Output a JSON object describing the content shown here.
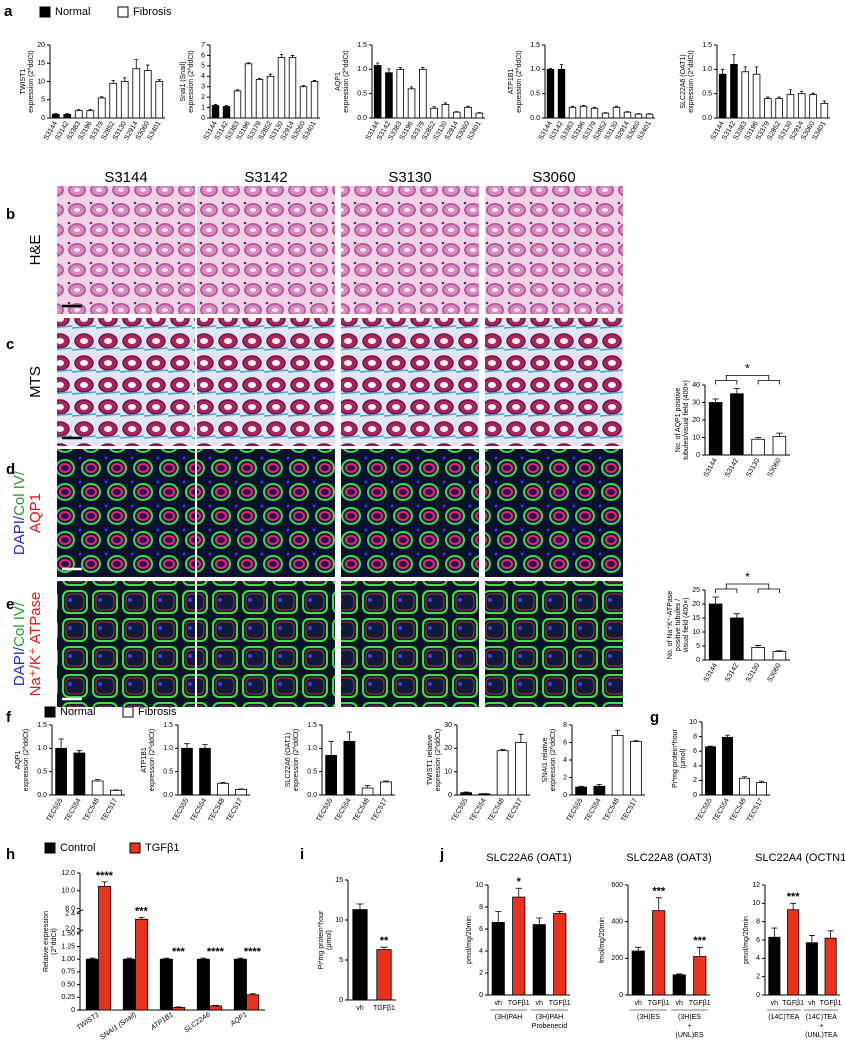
{
  "panel_labels": [
    "a",
    "b",
    "c",
    "d",
    "e",
    "f",
    "g",
    "h",
    "i",
    "j"
  ],
  "legends": [
    {
      "items": [
        {
          "name": "Normal",
          "color": "#000000"
        },
        {
          "name": "Fibrosis",
          "color": "#ffffff"
        }
      ]
    },
    {
      "items": [
        {
          "name": "Normal",
          "color": "#000000"
        },
        {
          "name": "Fibrosis",
          "color": "#ffffff"
        }
      ]
    }
  ],
  "micrographs": {
    "columns": [
      "S3144",
      "S3142",
      "S3130",
      "S3060"
    ],
    "rows": [
      {
        "lines": [
          [
            {
              "text": "H&E",
              "color": "#000000"
            }
          ]
        ]
      },
      {
        "lines": [
          [
            {
              "text": "MTS",
              "color": "#000000"
            }
          ]
        ]
      },
      {
        "lines": [
          [
            {
              "text": "DAPI/",
              "color": "#1f2fd0"
            },
            {
              "text": "Col IV/",
              "color": "#2a9a2a"
            }
          ],
          [
            {
              "text": "AQP1",
              "color": "#e01818"
            }
          ]
        ]
      },
      {
        "lines": [
          [
            {
              "text": "DAPI/",
              "color": "#1f2fd0"
            },
            {
              "text": "Col IV/",
              "color": "#2a9a2a"
            }
          ],
          [
            {
              "text": "Na⁺/K⁺ ATPase",
              "color": "#e01818"
            }
          ]
        ]
      }
    ]
  },
  "chart_data": [
    {
      "type": "bar",
      "ylabel": [
        "TWIST1",
        "expression (2^ddCt)"
      ],
      "categories": [
        "S3144",
        "S3142",
        "S3383",
        "S3196",
        "S3379",
        "S2852",
        "S3130",
        "S2914",
        "S3060",
        "S3401"
      ],
      "values": [
        1,
        1,
        2,
        2,
        5.5,
        9.5,
        10,
        13.5,
        13,
        10
      ],
      "errors": [
        0.2,
        0.2,
        0.3,
        0.3,
        0.3,
        0.8,
        1,
        2.5,
        1.5,
        0.5
      ],
      "colors": [
        "#000000",
        "#000000",
        "#ffffff",
        "#ffffff",
        "#ffffff",
        "#ffffff",
        "#ffffff",
        "#ffffff",
        "#ffffff",
        "#ffffff"
      ],
      "ylim": [
        0,
        20
      ],
      "yticks": [
        0,
        5,
        10,
        15,
        20
      ]
    },
    {
      "type": "bar",
      "ylabel": [
        "Snai1 (Snail)",
        "expression (2^ddCt)"
      ],
      "categories": [
        "S3144",
        "S3142",
        "S3383",
        "S3196",
        "S3379",
        "S2852",
        "S3130",
        "S2914",
        "S3060",
        "S3401"
      ],
      "values": [
        1.2,
        1.1,
        2.6,
        5.2,
        3.7,
        4,
        5.8,
        5.8,
        3,
        3.5
      ],
      "errors": [
        0.1,
        0.1,
        0.1,
        0.1,
        0.1,
        0.2,
        0.3,
        0.2,
        0.1,
        0.1
      ],
      "colors": [
        "#000000",
        "#000000",
        "#ffffff",
        "#ffffff",
        "#ffffff",
        "#ffffff",
        "#ffffff",
        "#ffffff",
        "#ffffff",
        "#ffffff"
      ],
      "ylim": [
        0,
        7
      ],
      "yticks": [
        0,
        1,
        2,
        3,
        4,
        5,
        6,
        7
      ]
    },
    {
      "type": "bar",
      "ylabel": [
        "AQP1",
        "expression (2^ddCt)"
      ],
      "categories": [
        "S3144",
        "S3142",
        "S3383",
        "S3196",
        "S3379",
        "S2852",
        "S3130",
        "S2914",
        "S3060",
        "S3401"
      ],
      "values": [
        1.08,
        0.93,
        1.0,
        0.6,
        1.0,
        0.2,
        0.28,
        0.12,
        0.22,
        0.1
      ],
      "errors": [
        0.05,
        0.08,
        0.04,
        0.04,
        0.04,
        0.03,
        0.03,
        0.01,
        0.02,
        0.01
      ],
      "colors": [
        "#000000",
        "#000000",
        "#ffffff",
        "#ffffff",
        "#ffffff",
        "#ffffff",
        "#ffffff",
        "#ffffff",
        "#ffffff",
        "#ffffff"
      ],
      "ylim": [
        0,
        1.5
      ],
      "yticks": [
        {
          "value": 0,
          "label": "0.0"
        },
        0.5,
        {
          "value": 1,
          "label": "1.0"
        },
        1.5
      ]
    },
    {
      "type": "bar",
      "ylabel": [
        "ATP1B1",
        "expression (2^ddCt)"
      ],
      "categories": [
        "S3144",
        "S3142",
        "S3383",
        "S3196",
        "S3379",
        "S2852",
        "S3130",
        "S2914",
        "S3060",
        "S3401"
      ],
      "values": [
        1.0,
        1.0,
        0.22,
        0.24,
        0.2,
        0.1,
        0.22,
        0.12,
        0.08,
        0.08
      ],
      "errors": [
        0.02,
        0.1,
        0.02,
        0.02,
        0.02,
        0.01,
        0.02,
        0.01,
        0.01,
        0.01
      ],
      "colors": [
        "#000000",
        "#000000",
        "#ffffff",
        "#ffffff",
        "#ffffff",
        "#ffffff",
        "#ffffff",
        "#ffffff",
        "#ffffff",
        "#ffffff"
      ],
      "ylim": [
        0,
        1.5
      ],
      "yticks": [
        {
          "value": 0,
          "label": "0.0"
        },
        0.5,
        {
          "value": 1,
          "label": "1.0"
        },
        1.5
      ]
    },
    {
      "type": "bar",
      "ylabel": [
        "SLC22A6 (OAT1)",
        "expression (2^ddCt)"
      ],
      "categories": [
        "S3144",
        "S3142",
        "S3383",
        "S3196",
        "S3379",
        "S2852",
        "S3130",
        "S2914",
        "S3060",
        "S3401"
      ],
      "values": [
        0.9,
        1.1,
        0.95,
        0.9,
        0.4,
        0.4,
        0.48,
        0.5,
        0.48,
        0.3
      ],
      "errors": [
        0.1,
        0.2,
        0.1,
        0.15,
        0.03,
        0.03,
        0.1,
        0.05,
        0.03,
        0.05
      ],
      "colors": [
        "#000000",
        "#000000",
        "#ffffff",
        "#ffffff",
        "#ffffff",
        "#ffffff",
        "#ffffff",
        "#ffffff",
        "#ffffff",
        "#ffffff"
      ],
      "ylim": [
        0,
        1.5
      ],
      "yticks": [
        {
          "value": 0,
          "label": "0.0"
        },
        0.5,
        {
          "value": 1,
          "label": "1.0"
        },
        1.5
      ]
    },
    {
      "type": "bar",
      "ylabel": [
        "No. of AQP1 positive",
        "tubules/visual field (400×)"
      ],
      "categories": [
        "S3144",
        "S3142",
        "S3130",
        "S3060"
      ],
      "values": [
        30,
        35,
        9,
        10.5
      ],
      "errors": [
        2,
        3,
        1,
        2
      ],
      "colors": [
        "#000000",
        "#000000",
        "#ffffff",
        "#ffffff"
      ],
      "ylim": [
        0,
        40
      ],
      "yticks": [
        0,
        10,
        20,
        30,
        40
      ],
      "significance": "*"
    },
    {
      "type": "bar",
      "ylabel": [
        "No. of Na⁺K⁺-ATPase",
        "positive tubules /",
        "visual field (400×)"
      ],
      "categories": [
        "S3144",
        "S3142",
        "S3130",
        "S3060"
      ],
      "values": [
        20,
        15,
        4.5,
        3
      ],
      "errors": [
        2.5,
        1.5,
        0.7,
        0.3
      ],
      "colors": [
        "#000000",
        "#000000",
        "#ffffff",
        "#ffffff"
      ],
      "ylim": [
        0,
        25
      ],
      "yticks": [
        0,
        5,
        10,
        15,
        20,
        25
      ],
      "significance": "*"
    },
    {
      "type": "bar",
      "ylabel": [
        "AQP1",
        "expression (2^ddCt)"
      ],
      "categories": [
        "TEC555",
        "TEC554",
        "TEC548",
        "TEC517"
      ],
      "values": [
        1.0,
        0.9,
        0.3,
        0.1
      ],
      "errors": [
        0.2,
        0.05,
        0.03,
        0.01
      ],
      "colors": [
        "#000000",
        "#000000",
        "#ffffff",
        "#ffffff"
      ],
      "ylim": [
        0,
        1.5
      ],
      "yticks": [
        {
          "value": 0,
          "label": "0.0"
        },
        0.5,
        {
          "value": 1,
          "label": "1.0"
        },
        1.5
      ]
    },
    {
      "type": "bar",
      "ylabel": [
        "ATP1B1",
        "expression (2^ddCt)"
      ],
      "categories": [
        "TEC555",
        "TEC554",
        "TEC548",
        "TEC517"
      ],
      "values": [
        1.0,
        1.0,
        0.25,
        0.12
      ],
      "errors": [
        0.1,
        0.08,
        0.02,
        0.01
      ],
      "colors": [
        "#000000",
        "#000000",
        "#ffffff",
        "#ffffff"
      ],
      "ylim": [
        0,
        1.5
      ],
      "yticks": [
        {
          "value": 0,
          "label": "0.0"
        },
        0.5,
        {
          "value": 1,
          "label": "1.0"
        },
        1.5
      ]
    },
    {
      "type": "bar",
      "ylabel": [
        "SLC22A6 (OAT1)",
        "expression (2^ddCt)"
      ],
      "categories": [
        "TEC555",
        "TEC554",
        "TEC548",
        "TEC517"
      ],
      "values": [
        0.85,
        1.15,
        0.15,
        0.28
      ],
      "errors": [
        0.3,
        0.2,
        0.05,
        0.02
      ],
      "colors": [
        "#000000",
        "#000000",
        "#ffffff",
        "#ffffff"
      ],
      "ylim": [
        0,
        1.5
      ],
      "yticks": [
        {
          "value": 0,
          "label": "0.0"
        },
        0.5,
        {
          "value": 1,
          "label": "1.0"
        },
        1.5
      ]
    },
    {
      "type": "bar",
      "ylabel": [
        "TWIST1 relative",
        "expression (2^ddCt)"
      ],
      "categories": [
        "TEC555",
        "TEC554",
        "TEC548",
        "TEC517"
      ],
      "values": [
        1,
        0.5,
        19,
        22.5
      ],
      "errors": [
        0.3,
        0.1,
        0.5,
        3.5
      ],
      "colors": [
        "#000000",
        "#000000",
        "#ffffff",
        "#ffffff"
      ],
      "ylim": [
        0,
        30
      ],
      "yticks": [
        0,
        10,
        20,
        30
      ]
    },
    {
      "type": "bar",
      "ylabel": [
        "SNAI1 relative",
        "expression (2^ddCt)"
      ],
      "categories": [
        "TEC555",
        "TEC554",
        "TEC548",
        "TEC517"
      ],
      "values": [
        0.9,
        1,
        6.8,
        6.1
      ],
      "errors": [
        0.1,
        0.2,
        0.6,
        0.1
      ],
      "colors": [
        "#000000",
        "#000000",
        "#ffffff",
        "#ffffff"
      ],
      "ylim": [
        0,
        8
      ],
      "yticks": [
        0,
        2,
        4,
        6,
        8
      ]
    },
    {
      "type": "bar",
      "ylabel": [
        "Pi*mg protein*hour",
        "(μmol)"
      ],
      "categories": [
        "TEC555",
        "TEC554",
        "TEC548",
        "TEC517"
      ],
      "values": [
        6.6,
        7.9,
        2.3,
        1.7
      ],
      "errors": [
        0.1,
        0.3,
        0.2,
        0.2
      ],
      "colors": [
        "#000000",
        "#000000",
        "#ffffff",
        "#ffffff"
      ],
      "ylim": [
        0,
        10
      ],
      "yticks": [
        0,
        2,
        4,
        6,
        8,
        10
      ]
    },
    {
      "type": "bar",
      "ylabel": [
        "Relative expression",
        "(2^ddCt)"
      ],
      "categories": [
        "TWIST1",
        "SNAI1 (Snail)",
        "ATP1B1",
        "SLC22A6",
        "AQP1"
      ],
      "series": [
        {
          "name": "Control",
          "color": "#000000",
          "values": [
            1,
            1,
            1,
            1,
            1
          ],
          "errors": [
            0.02,
            0.02,
            0.02,
            0.02,
            0.02
          ]
        },
        {
          "name": "TGFβ1",
          "color": "#e8321e",
          "values": [
            10.5,
            2.25,
            0.05,
            0.08,
            0.3
          ],
          "errors": [
            0.5,
            0.05,
            0.01,
            0.01,
            0.02
          ]
        }
      ],
      "annotations": [
        "****",
        "***",
        "***",
        "****",
        "****"
      ],
      "ysegments": [
        [
          0,
          1.5
        ],
        [
          2,
          2.4
        ],
        [
          8,
          12
        ]
      ],
      "yticks": [
        0,
        0.25,
        {
          "value": 0.5,
          "label": "0.50"
        },
        0.75,
        {
          "value": 1,
          "label": "1.00"
        },
        1.25,
        {
          "value": 1.5,
          "label": "1.50"
        },
        {
          "value": 2,
          "label": "2.0"
        },
        2.4,
        {
          "value": 8,
          "label": "8.0"
        },
        {
          "value": 10,
          "label": "10.0"
        },
        {
          "value": 12,
          "label": "12.0"
        }
      ]
    },
    {
      "type": "bar",
      "ylabel": [
        "Pi*mg protein*hour",
        "(μmol)"
      ],
      "categories": [
        "vh",
        "TGFβ1"
      ],
      "values": [
        11.3,
        6.3
      ],
      "errors": [
        0.7,
        0.3
      ],
      "colors": [
        "#000000",
        "#e8321e"
      ],
      "annotations": [
        null,
        "**"
      ],
      "ylim": [
        0,
        15
      ],
      "yticks": [
        0,
        5,
        10,
        15
      ]
    },
    {
      "type": "bar",
      "title": "SLC22A6 (OAT1)",
      "ylabel": [
        "pmol/mg/20min"
      ],
      "categories": [
        "vh",
        "TGFβ1",
        "vh",
        "TGFβ1"
      ],
      "values": [
        6.6,
        8.9,
        6.4,
        7.4
      ],
      "errors": [
        1,
        0.8,
        0.6,
        0.2
      ],
      "colors": [
        "#000000",
        "#e8321e",
        "#000000",
        "#e8321e"
      ],
      "annotations": [
        null,
        "*",
        null,
        null
      ],
      "group_labels": [
        [
          "(3H)PAH"
        ],
        [
          "(3H)PAH",
          "Probenecid"
        ]
      ],
      "ylim": [
        0,
        10
      ],
      "yticks": [
        0,
        2,
        4,
        6,
        8,
        10
      ]
    },
    {
      "type": "bar",
      "title": "SLC22A8 (OAT3)",
      "ylabel": [
        "fmol/mg/20min"
      ],
      "categories": [
        "vh",
        "TGFβ1",
        "vh",
        "TGFβ1"
      ],
      "values": [
        240,
        460,
        110,
        210
      ],
      "errors": [
        20,
        70,
        5,
        50
      ],
      "colors": [
        "#000000",
        "#e8321e",
        "#000000",
        "#e8321e"
      ],
      "annotations": [
        null,
        "***",
        null,
        "***"
      ],
      "group_labels": [
        [
          "(3H)ES"
        ],
        [
          "(3H)ES",
          "+",
          "(UNL)ES"
        ]
      ],
      "ylim": [
        0,
        600
      ],
      "yticks": [
        0,
        200,
        400,
        600
      ]
    },
    {
      "type": "bar",
      "title": "SLC22A4 (OCTN1)",
      "ylabel": [
        "pmol/mg/20min"
      ],
      "categories": [
        "vh",
        "TGFβ1",
        "vh",
        "TGFβ1"
      ],
      "values": [
        6.3,
        9.3,
        5.7,
        6.2
      ],
      "errors": [
        1,
        0.7,
        0.8,
        0.8
      ],
      "colors": [
        "#000000",
        "#e8321e",
        "#000000",
        "#e8321e"
      ],
      "annotations": [
        null,
        "***",
        null,
        null
      ],
      "group_labels": [
        [
          "(14C)TEA"
        ],
        [
          "(14C)TEA",
          "+",
          "(UNL)TEA"
        ]
      ],
      "ylim": [
        0,
        12
      ],
      "yticks": [
        0,
        2,
        4,
        6,
        8,
        10,
        12
      ]
    }
  ]
}
